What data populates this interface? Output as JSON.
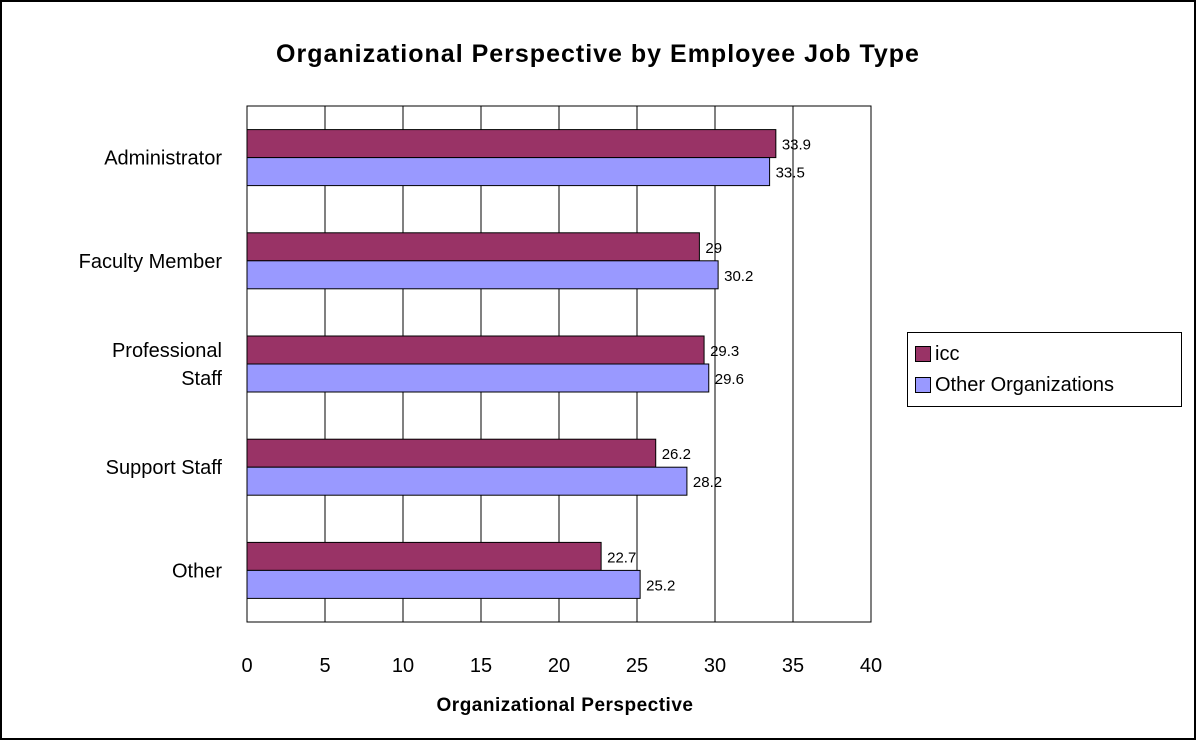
{
  "chart_data": {
    "type": "bar",
    "orientation": "horizontal",
    "title": "Organizational Perspective by Employee Job Type",
    "xlabel": "Organizational Perspective",
    "ylabel": "",
    "categories": [
      "Administrator",
      "Faculty Member",
      "Professional Staff",
      "Support Staff",
      "Other"
    ],
    "category_lines": [
      [
        "Administrator"
      ],
      [
        "Faculty Member"
      ],
      [
        "Professional",
        "Staff"
      ],
      [
        "Support Staff"
      ],
      [
        "Other"
      ]
    ],
    "series": [
      {
        "name": "icc",
        "values": [
          33.9,
          29,
          29.3,
          26.2,
          22.7
        ],
        "color": "#993366"
      },
      {
        "name": "Other Organizations",
        "values": [
          33.5,
          30.2,
          29.6,
          28.2,
          25.2
        ],
        "color": "#9999ff"
      }
    ],
    "xlim": [
      0,
      40
    ],
    "xticks": [
      "0",
      "5",
      "10",
      "15",
      "20",
      "25",
      "30",
      "35",
      "40"
    ],
    "grid": true,
    "legend_position": "right",
    "data_labels": true
  }
}
